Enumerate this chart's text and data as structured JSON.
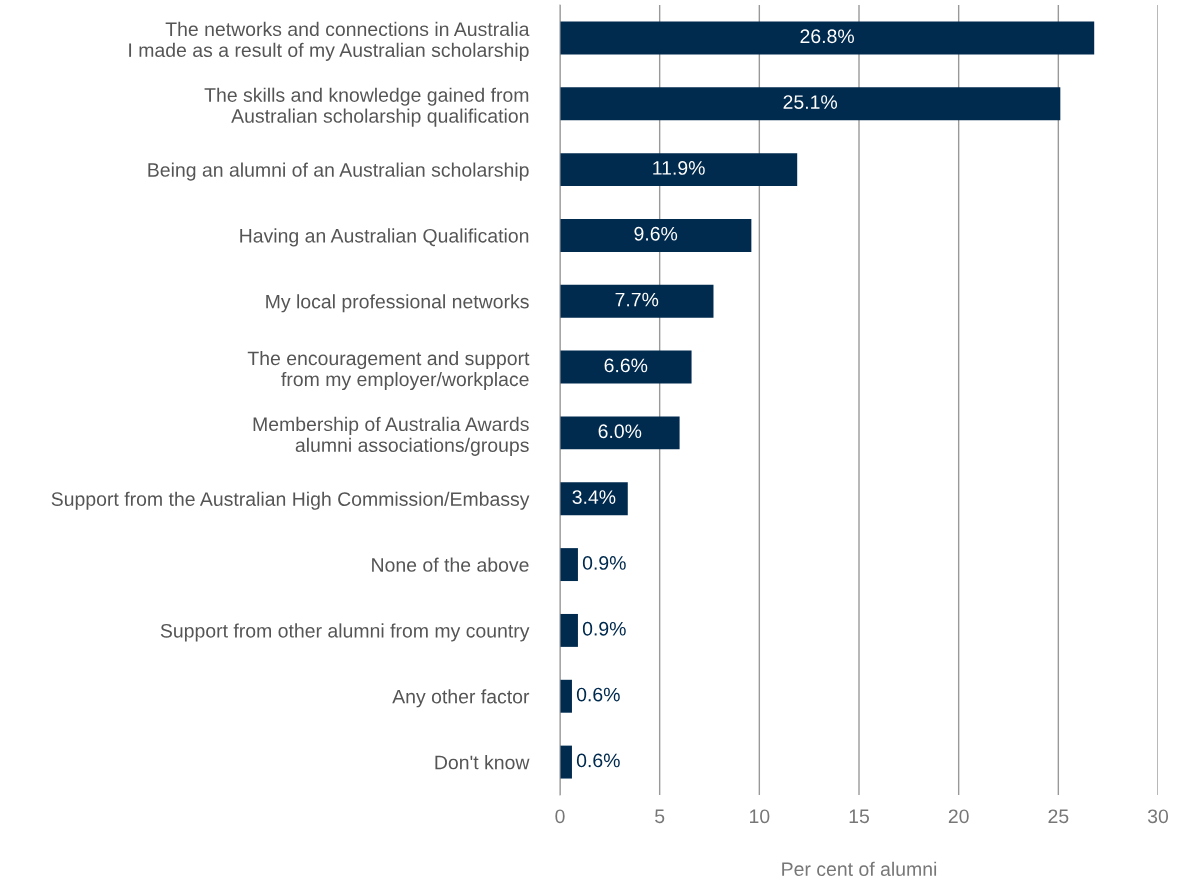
{
  "chart_data": {
    "type": "bar",
    "orientation": "horizontal",
    "xlabel": "Per cent of alumni",
    "categories": [
      "The networks and connections in Australia\nI made as a result of my Australian scholarship",
      "The skills and knowledge gained from\nAustralian scholarship qualification",
      "Being an alumni of an Australian scholarship",
      "Having an Australian Qualification",
      "My local professional networks",
      "The encouragement and support\nfrom my employer/workplace",
      "Membership of Australia Awards\nalumni associations/groups",
      "Support from the Australian High Commission/Embassy",
      "None of the above",
      "Support from other alumni from my country",
      "Any other factor",
      "Don't know"
    ],
    "values": [
      26.8,
      25.1,
      11.9,
      9.6,
      7.7,
      6.6,
      6.0,
      3.4,
      0.9,
      0.9,
      0.6,
      0.6
    ],
    "value_labels": [
      "26.8%",
      "25.1%",
      "11.9%",
      "9.6%",
      "7.7%",
      "6.6%",
      "6.0%",
      "3.4%",
      "0.9%",
      "0.9%",
      "0.6%",
      "0.6%"
    ],
    "color": "#002a4e",
    "xlim": [
      0,
      30
    ],
    "xticks": [
      0,
      5,
      10,
      15,
      20,
      25,
      30
    ],
    "grid": "x"
  }
}
